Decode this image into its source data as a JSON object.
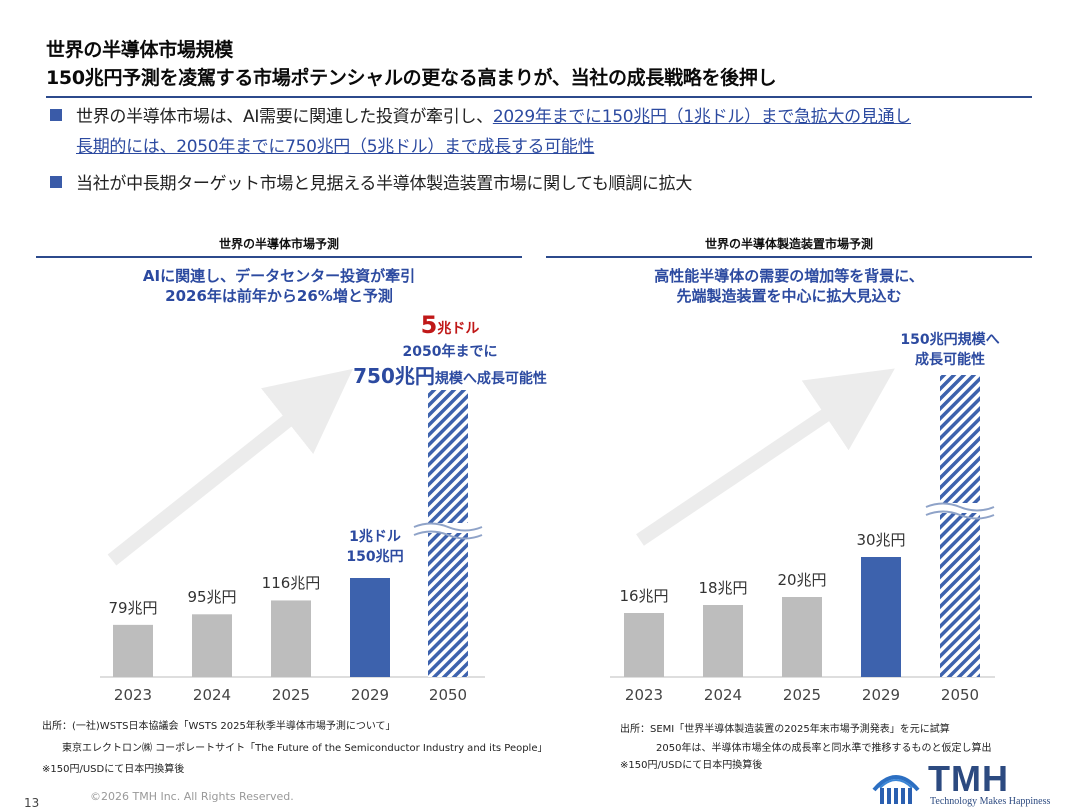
{
  "title": {
    "line1": "世界の半導体市場規模",
    "line2": "150兆円予測を凌駕する市場ポテンシャルの更なる高まりが、当社の成長戦略を後押し"
  },
  "bullets": [
    {
      "text": "世界の半導体市場は、AI需要に関連した投資が牽引し、",
      "highlight": "2029年までに150兆円（1兆ドル）まで急拡大の見通し"
    },
    {
      "text": "",
      "highlight": "長期的には、2050年までに750兆円（5兆ドル）まで成長する可能性"
    },
    {
      "text": "当社が中長期ターゲット市場と見据える半導体製造装置市場に関しても順調に拡大",
      "highlight": ""
    }
  ],
  "left_panel": {
    "title": "世界の半導体市場予測",
    "subtitle1": "AIに関連し、データセンター投資が牽引",
    "subtitle2": "2026年は前年から26%増と予測",
    "top_note_big": "5",
    "top_note_big_unit": "兆ドル",
    "top_note_line2": "2050年までに",
    "top_note_line3_big": "750兆円",
    "top_note_line3_rest": "規模へ成長可能性",
    "bar_note_line1": "1兆ドル",
    "bar_note_line2": "150兆円"
  },
  "right_panel": {
    "title": "世界の半導体製造装置市場予測",
    "subtitle1": "高性能半導体の需要の増加等を背景に、",
    "subtitle2": "先端製造装置を中心に拡大見込む",
    "top_note_line1": "150兆円規模へ",
    "top_note_line2": "成長可能性"
  },
  "chart_data": [
    {
      "type": "bar",
      "categories": [
        "2023",
        "2024",
        "2025",
        "2029",
        "2050"
      ],
      "values": [
        79,
        95,
        116,
        150,
        750
      ],
      "value_labels": [
        "79兆円",
        "95兆円",
        "116兆円",
        "",
        ""
      ],
      "unit": "兆円",
      "colors": [
        "#bdbdbd",
        "#bdbdbd",
        "#bdbdbd",
        "#3d62ad",
        "hatched-blue"
      ],
      "axis_break": true
    },
    {
      "type": "bar",
      "categories": [
        "2023",
        "2024",
        "2025",
        "2029",
        "2050"
      ],
      "values": [
        16,
        18,
        20,
        30,
        150
      ],
      "value_labels": [
        "16兆円",
        "18兆円",
        "20兆円",
        "30兆円",
        ""
      ],
      "unit": "兆円",
      "colors": [
        "#bdbdbd",
        "#bdbdbd",
        "#bdbdbd",
        "#3d62ad",
        "hatched-blue"
      ],
      "axis_break": true
    }
  ],
  "footnotes_left": [
    "出所：(一社)WSTS日本協議会「WSTS 2025年秋季半導体市場予測について」",
    "東京エレクトロン㈱ コーポレートサイト「The Future of the Semiconductor Industry and its People」",
    "※150円/USDにて日本円換算後"
  ],
  "footnotes_right": [
    "出所：SEMI「世界半導体製造装置の2025年末市場予測発表」を元に試算",
    "2050年は、半導体市場全体の成長率と同水準で推移するものと仮定し算出",
    "※150円/USDにて日本円換算後"
  ],
  "copyright": "©2026 TMH Inc. All Rights Reserved.",
  "page_number": "13",
  "logo": {
    "name": "TMH",
    "tagline": "Technology Makes Happiness"
  },
  "colors": {
    "accent": "#2c4aa0",
    "bar_gray": "#bdbdbd",
    "bar_blue": "#3d62ad",
    "red": "#c01818"
  }
}
